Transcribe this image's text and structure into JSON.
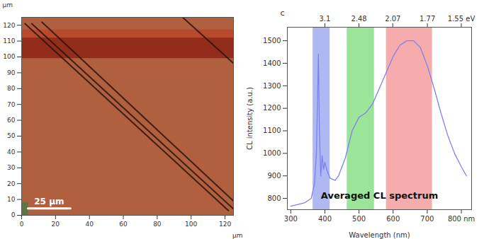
{
  "chart_data": [
    {
      "type": "image",
      "x_label": "µm",
      "y_label": "µm",
      "xlim": [
        0,
        125
      ],
      "ylim": [
        0,
        125
      ],
      "xticks": [
        0,
        20,
        40,
        60,
        80,
        100,
        120
      ],
      "yticks": [
        0,
        10,
        20,
        30,
        40,
        50,
        60,
        70,
        80,
        90,
        100,
        110,
        120
      ],
      "color": "#b0603e",
      "regions": [
        {
          "x": [
            0,
            125
          ],
          "y": [
            99,
            112
          ],
          "color": "#8c2414"
        },
        {
          "x": [
            0,
            125
          ],
          "y": [
            112,
            117
          ],
          "color": "#b8452c"
        },
        {
          "x": [
            0,
            4
          ],
          "y": [
            0,
            8
          ],
          "color": "#4f7a45"
        }
      ],
      "dark_lines": [
        [
          [
            2,
            121
          ],
          [
            122,
            3
          ]
        ],
        [
          [
            6,
            121
          ],
          [
            125,
            4
          ]
        ],
        [
          [
            12,
            122
          ],
          [
            125,
            9
          ]
        ],
        [
          [
            95,
            125
          ],
          [
            125,
            96
          ]
        ]
      ],
      "scale_bar": {
        "length": 25,
        "label": "25 µm"
      }
    },
    {
      "type": "line",
      "panel_label": "c",
      "x_label": "Wavelength (nm)",
      "y_label": "CL intensity (a.u.)",
      "annotation": "Averaged CL spectrum",
      "xlim": [
        290,
        830
      ],
      "ylim": [
        750,
        1560
      ],
      "xticks": [
        300,
        400,
        500,
        600,
        700,
        {
          "value": 800,
          "label": "800 nm"
        }
      ],
      "yticks": [
        800,
        900,
        1000,
        1100,
        1200,
        1300,
        1400,
        1500
      ],
      "x2ticks": [
        3.1,
        2.48,
        2.07,
        1.77,
        {
          "value": 1.55,
          "label": "1.55 eV"
        }
      ],
      "bands": [
        {
          "x": [
            365,
            415
          ],
          "color": "#a6b0f2"
        },
        {
          "x": [
            465,
            545
          ],
          "color": "#8fe28f"
        },
        {
          "x": [
            580,
            715
          ],
          "color": "#f5a3a3"
        }
      ],
      "series": [
        {
          "name": "Averaged CL spectrum",
          "color": "#8080ee",
          "x": [
            300,
            340,
            360,
            370,
            375,
            378,
            381,
            384,
            388,
            392,
            396,
            400,
            405,
            415,
            430,
            440,
            460,
            480,
            500,
            520,
            540,
            560,
            580,
            600,
            620,
            640,
            660,
            680,
            700,
            720,
            740,
            760,
            780,
            800,
            815
          ],
          "values": [
            765,
            780,
            800,
            870,
            1000,
            1200,
            1440,
            1100,
            900,
            990,
            930,
            960,
            930,
            890,
            880,
            900,
            980,
            1100,
            1160,
            1180,
            1220,
            1290,
            1360,
            1430,
            1480,
            1500,
            1500,
            1470,
            1390,
            1290,
            1180,
            1080,
            1000,
            940,
            900
          ]
        }
      ]
    }
  ]
}
